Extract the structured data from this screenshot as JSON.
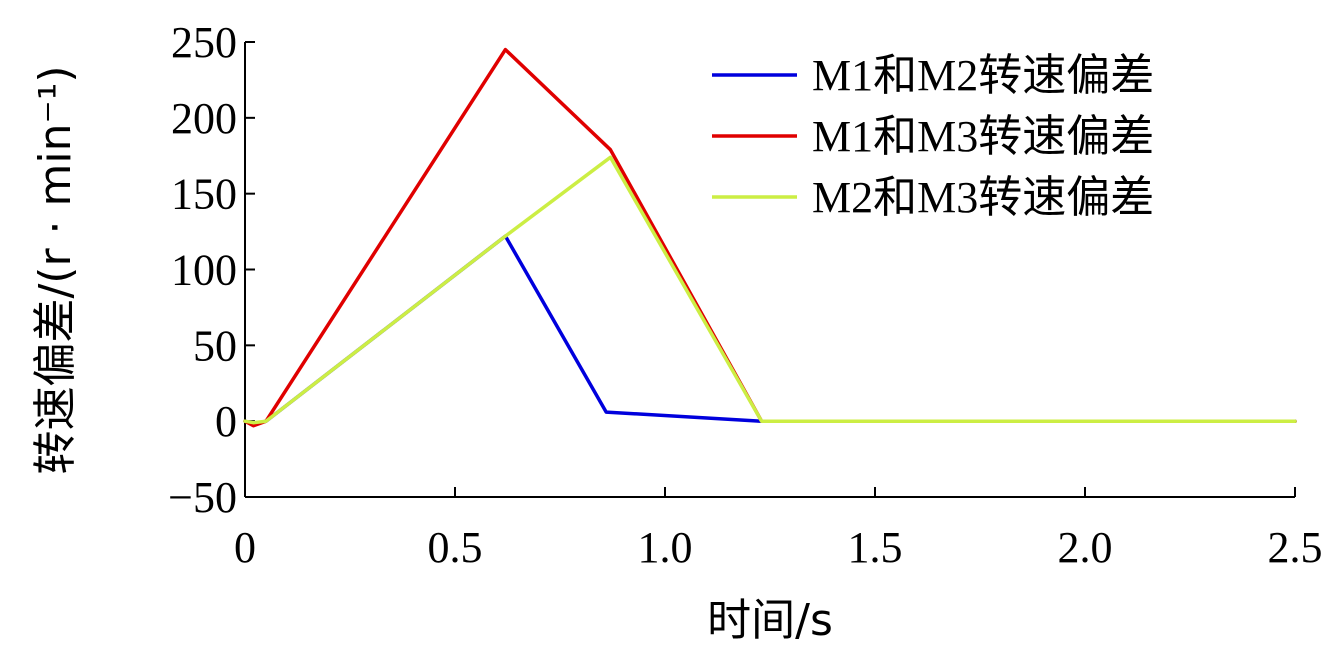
{
  "chart_data": {
    "type": "line",
    "xlabel": "时间/s",
    "ylabel": "转速偏差/(r · min⁻¹)",
    "xlim": [
      0,
      2.5
    ],
    "ylim": [
      -50,
      250
    ],
    "xticks": [
      0,
      0.5,
      1.0,
      1.5,
      2.0,
      2.5
    ],
    "xtick_labels": [
      "0",
      "0.5",
      "1.0",
      "1.5",
      "2.0",
      "2.5"
    ],
    "yticks": [
      -50,
      0,
      50,
      100,
      150,
      200,
      250
    ],
    "ytick_labels": [
      "−50",
      "0",
      "50",
      "100",
      "150",
      "200",
      "250"
    ],
    "grid": false,
    "legend_position": "top-right",
    "series": [
      {
        "name": "M1和M2转速偏差",
        "color": "#0000dd",
        "points": [
          [
            0,
            0
          ],
          [
            0.02,
            -2
          ],
          [
            0.05,
            0
          ],
          [
            0.62,
            122
          ],
          [
            0.86,
            6
          ],
          [
            1.23,
            0
          ],
          [
            2.5,
            0
          ]
        ]
      },
      {
        "name": "M1和M3转速偏差",
        "color": "#e00000",
        "points": [
          [
            0,
            0
          ],
          [
            0.02,
            -3
          ],
          [
            0.05,
            0
          ],
          [
            0.62,
            245
          ],
          [
            0.87,
            179
          ],
          [
            1.23,
            0
          ],
          [
            2.5,
            0
          ]
        ]
      },
      {
        "name": "M2和M3转速偏差",
        "color": "#ccee44",
        "points": [
          [
            0,
            0
          ],
          [
            0.02,
            -1
          ],
          [
            0.05,
            0
          ],
          [
            0.62,
            122
          ],
          [
            0.87,
            174
          ],
          [
            1.23,
            0
          ],
          [
            2.5,
            0
          ]
        ]
      }
    ]
  }
}
